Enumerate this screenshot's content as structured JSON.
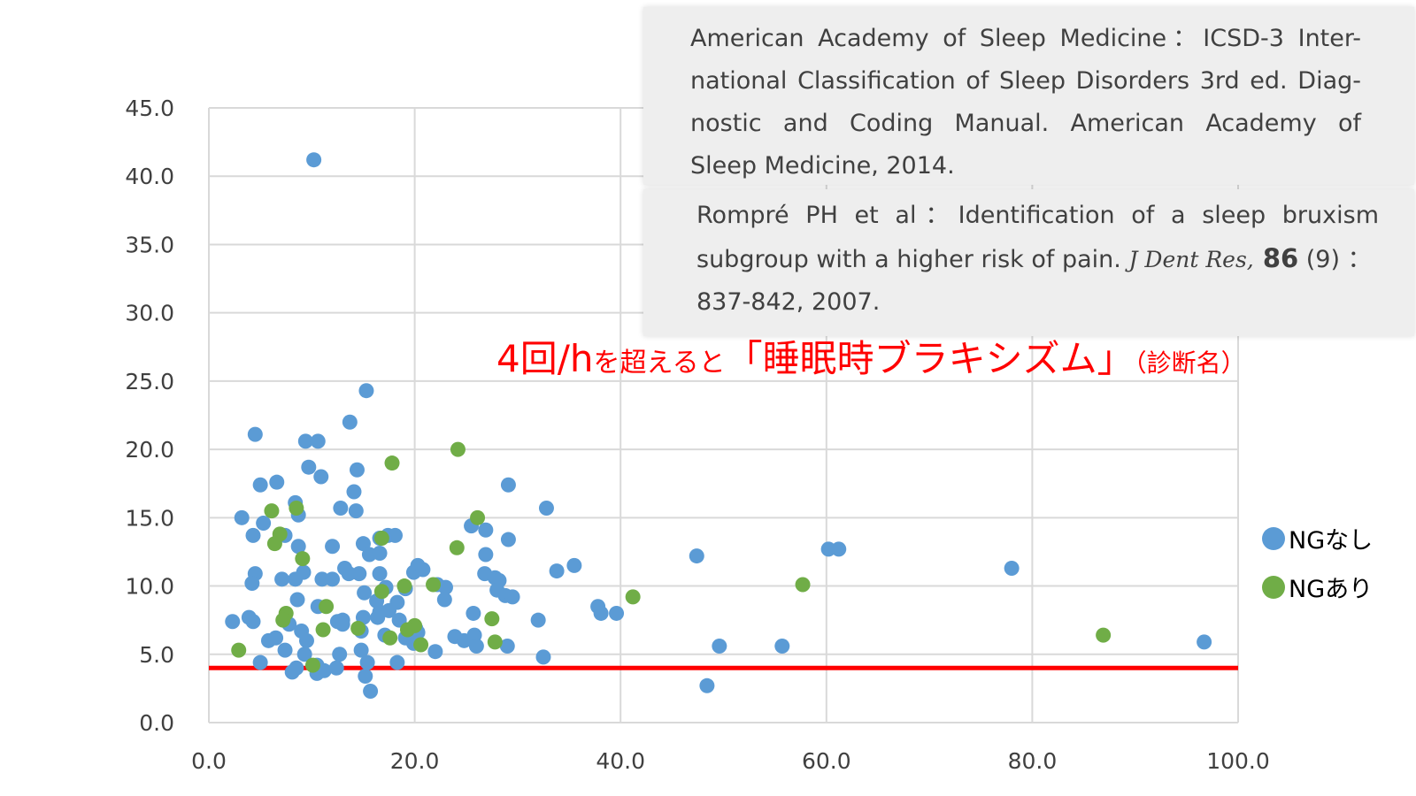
{
  "references": [
    {
      "lines": [
        "American Academy of Sleep Medicine：ICSD-3 Inter-",
        "national Classification of Sleep Disorders 3rd ed. Diag-",
        "nostic and Coding Manual. American Academy of",
        "Sleep Medicine, 2014."
      ]
    },
    {
      "line1": "Rompré PH et al：Identification of a sleep bruxism",
      "line2_pre": "subgroup with a higher risk of pain. ",
      "journal": "J Dent Res,",
      "volume": " 86",
      "issue": " (9) ：",
      "line3": "837-842, 2007."
    }
  ],
  "annotation": {
    "part1": "4回/h",
    "part2": "を超えると",
    "part3": "「睡眠時ブラキシズム」",
    "part4": "（診断名）"
  },
  "colors": {
    "series_none": "#5b9bd5",
    "series_ng": "#70ad47",
    "threshold_line": "#ff0000",
    "grid": "#d9d9d9"
  },
  "chart_data": {
    "type": "scatter",
    "xlim": [
      0,
      100
    ],
    "ylim": [
      0,
      45
    ],
    "x_ticks": [
      "0.0",
      "20.0",
      "40.0",
      "60.0",
      "80.0",
      "100.0"
    ],
    "y_ticks": [
      "0.0",
      "5.0",
      "10.0",
      "15.0",
      "20.0",
      "25.0",
      "30.0",
      "35.0",
      "40.0",
      "45.0"
    ],
    "grid": true,
    "legend_position": "right",
    "threshold": 4,
    "series": [
      {
        "name": "NGなし",
        "color": "#5b9bd5",
        "points": [
          [
            10.2,
            41.2
          ],
          [
            15.3,
            24.3
          ],
          [
            13.7,
            22.0
          ],
          [
            4.5,
            21.1
          ],
          [
            9.4,
            20.6
          ],
          [
            10.6,
            20.6
          ],
          [
            9.7,
            18.7
          ],
          [
            10.9,
            18.0
          ],
          [
            14.4,
            18.5
          ],
          [
            5.0,
            17.4
          ],
          [
            6.6,
            17.6
          ],
          [
            29.1,
            17.4
          ],
          [
            14.1,
            16.9
          ],
          [
            8.4,
            16.1
          ],
          [
            12.8,
            15.7
          ],
          [
            14.3,
            15.5
          ],
          [
            3.2,
            15.0
          ],
          [
            8.7,
            15.2
          ],
          [
            32.8,
            15.7
          ],
          [
            5.3,
            14.6
          ],
          [
            25.5,
            14.4
          ],
          [
            26.9,
            14.1
          ],
          [
            4.3,
            13.7
          ],
          [
            7.4,
            13.7
          ],
          [
            15.0,
            13.1
          ],
          [
            16.6,
            13.5
          ],
          [
            17.4,
            13.7
          ],
          [
            18.1,
            13.7
          ],
          [
            29.1,
            13.4
          ],
          [
            8.7,
            12.9
          ],
          [
            12.0,
            12.9
          ],
          [
            15.6,
            12.3
          ],
          [
            16.6,
            12.4
          ],
          [
            26.9,
            12.3
          ],
          [
            47.4,
            12.2
          ],
          [
            60.2,
            12.7
          ],
          [
            61.2,
            12.7
          ],
          [
            78.0,
            11.3
          ],
          [
            13.2,
            11.3
          ],
          [
            33.8,
            11.1
          ],
          [
            35.5,
            11.5
          ],
          [
            4.5,
            10.9
          ],
          [
            7.1,
            10.5
          ],
          [
            8.4,
            10.5
          ],
          [
            9.2,
            11.0
          ],
          [
            11.0,
            10.5
          ],
          [
            12.0,
            10.5
          ],
          [
            13.6,
            10.9
          ],
          [
            14.6,
            10.9
          ],
          [
            16.6,
            10.9
          ],
          [
            19.9,
            11.0
          ],
          [
            20.3,
            11.5
          ],
          [
            20.8,
            11.2
          ],
          [
            22.2,
            10.1
          ],
          [
            26.8,
            10.9
          ],
          [
            27.8,
            10.6
          ],
          [
            28.2,
            10.4
          ],
          [
            4.2,
            10.2
          ],
          [
            15.1,
            9.5
          ],
          [
            17.2,
            9.9
          ],
          [
            19.1,
            9.8
          ],
          [
            23.0,
            9.9
          ],
          [
            28.0,
            9.7
          ],
          [
            28.8,
            9.3
          ],
          [
            29.5,
            9.2
          ],
          [
            8.6,
            9.0
          ],
          [
            16.3,
            8.9
          ],
          [
            18.3,
            8.8
          ],
          [
            22.9,
            9.0
          ],
          [
            37.8,
            8.5
          ],
          [
            10.6,
            8.5
          ],
          [
            13.0,
            7.5
          ],
          [
            16.6,
            8.1
          ],
          [
            17.5,
            8.2
          ],
          [
            38.1,
            8.0
          ],
          [
            39.6,
            8.0
          ],
          [
            25.7,
            8.0
          ],
          [
            2.3,
            7.4
          ],
          [
            3.9,
            7.7
          ],
          [
            4.3,
            7.4
          ],
          [
            12.5,
            7.4
          ],
          [
            15.0,
            7.7
          ],
          [
            16.4,
            7.7
          ],
          [
            18.5,
            7.5
          ],
          [
            32.0,
            7.5
          ],
          [
            7.8,
            7.2
          ],
          [
            13.0,
            7.2
          ],
          [
            20.1,
            6.9
          ],
          [
            9.0,
            6.7
          ],
          [
            14.8,
            6.7
          ],
          [
            20.3,
            6.6
          ],
          [
            5.8,
            6.0
          ],
          [
            6.5,
            6.2
          ],
          [
            9.5,
            6.0
          ],
          [
            17.1,
            6.4
          ],
          [
            19.1,
            6.2
          ],
          [
            23.9,
            6.3
          ],
          [
            24.8,
            6.0
          ],
          [
            25.8,
            6.4
          ],
          [
            19.9,
            5.8
          ],
          [
            26.0,
            5.6
          ],
          [
            29.0,
            5.6
          ],
          [
            49.6,
            5.6
          ],
          [
            55.7,
            5.6
          ],
          [
            96.7,
            5.9
          ],
          [
            7.4,
            5.3
          ],
          [
            9.3,
            5.0
          ],
          [
            12.7,
            5.0
          ],
          [
            14.8,
            5.3
          ],
          [
            22.0,
            5.2
          ],
          [
            32.5,
            4.8
          ],
          [
            5.0,
            4.4
          ],
          [
            15.4,
            4.4
          ],
          [
            18.3,
            4.4
          ],
          [
            10.5,
            4.2
          ],
          [
            12.4,
            4.0
          ],
          [
            8.5,
            4.0
          ],
          [
            8.1,
            3.7
          ],
          [
            10.5,
            3.6
          ],
          [
            11.2,
            3.8
          ],
          [
            15.2,
            3.4
          ],
          [
            48.4,
            2.7
          ],
          [
            15.7,
            2.3
          ]
        ]
      },
      {
        "name": "NGあり",
        "color": "#70ad47",
        "points": [
          [
            24.2,
            20.0
          ],
          [
            17.8,
            19.0
          ],
          [
            6.1,
            15.5
          ],
          [
            8.5,
            15.7
          ],
          [
            26.1,
            15.0
          ],
          [
            6.9,
            13.8
          ],
          [
            6.4,
            13.1
          ],
          [
            16.8,
            13.5
          ],
          [
            24.1,
            12.8
          ],
          [
            9.1,
            12.0
          ],
          [
            21.8,
            10.1
          ],
          [
            19.0,
            10.0
          ],
          [
            41.2,
            9.2
          ],
          [
            57.7,
            10.1
          ],
          [
            16.8,
            9.6
          ],
          [
            11.4,
            8.5
          ],
          [
            7.5,
            8.0
          ],
          [
            7.2,
            7.5
          ],
          [
            27.5,
            7.6
          ],
          [
            20.0,
            7.1
          ],
          [
            19.3,
            6.8
          ],
          [
            14.5,
            6.9
          ],
          [
            11.1,
            6.8
          ],
          [
            17.6,
            6.2
          ],
          [
            86.9,
            6.4
          ],
          [
            27.8,
            5.9
          ],
          [
            20.6,
            5.7
          ],
          [
            2.9,
            5.3
          ],
          [
            10.1,
            4.2
          ]
        ]
      }
    ]
  }
}
